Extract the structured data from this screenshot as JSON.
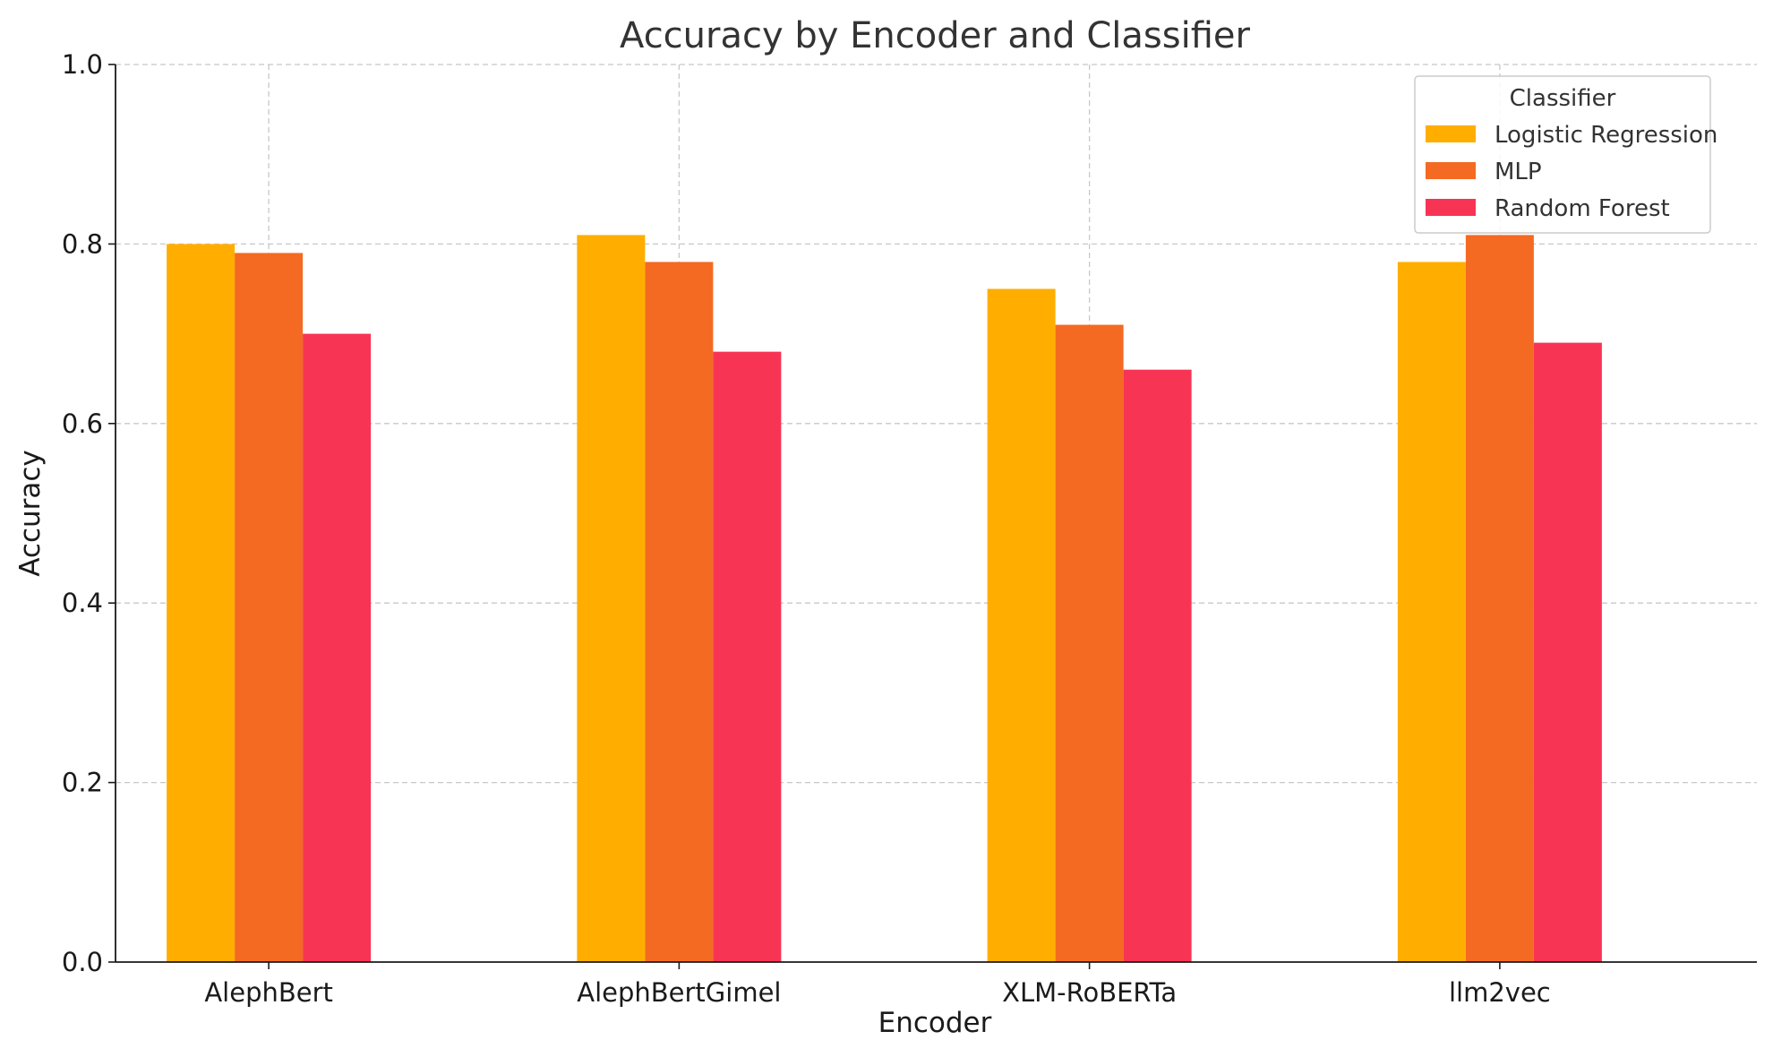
{
  "chart_data": {
    "type": "bar",
    "title": "Accuracy by Encoder and Classifier",
    "xlabel": "Encoder",
    "ylabel": "Accuracy",
    "categories": [
      "AlephBert",
      "AlephBertGimel",
      "XLM-RoBERTa",
      "llm2vec"
    ],
    "series": [
      {
        "name": "Logistic Regression",
        "values": [
          0.8,
          0.81,
          0.75,
          0.78
        ],
        "color": "#FFAE00"
      },
      {
        "name": "MLP",
        "values": [
          0.79,
          0.78,
          0.71,
          0.81
        ],
        "color": "#F46A22"
      },
      {
        "name": "Random Forest",
        "values": [
          0.7,
          0.68,
          0.66,
          0.69
        ],
        "color": "#F83454"
      }
    ],
    "ylim": [
      0,
      1.0
    ],
    "yticks": [
      "0.0",
      "0.2",
      "0.4",
      "0.6",
      "0.8",
      "1.0"
    ],
    "grid": true,
    "legend": {
      "title": "Classifier",
      "placement": "top-right"
    }
  }
}
